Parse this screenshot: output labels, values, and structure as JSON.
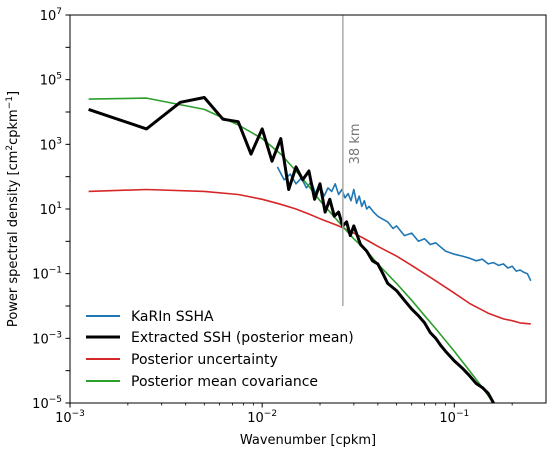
{
  "chart_data": {
    "type": "line",
    "xscale": "log",
    "yscale": "log",
    "xlim": [
      0.001,
      0.3
    ],
    "ylim": [
      1e-05,
      10000000
    ],
    "xlabel": "Wavenumber [cpkm]",
    "ylabel_main": "Power spectral density [cm",
    "ylabel_exp1": "2",
    "ylabel_mid": "cpkm",
    "ylabel_exp2": "−1",
    "ylabel_end": "]",
    "xticks": [
      {
        "value": 0.001,
        "base": "10",
        "exp": "−3"
      },
      {
        "value": 0.01,
        "base": "10",
        "exp": "−2"
      },
      {
        "value": 0.1,
        "base": "10",
        "exp": "−1"
      }
    ],
    "yticks": [
      {
        "value": 1e-05,
        "base": "10",
        "exp": "−5"
      },
      {
        "value": 0.001,
        "base": "10",
        "exp": "−3"
      },
      {
        "value": 0.1,
        "base": "10",
        "exp": "−1"
      },
      {
        "value": 10,
        "base": "10",
        "exp": "1"
      },
      {
        "value": 1000,
        "base": "10",
        "exp": "3"
      },
      {
        "value": 100000,
        "base": "10",
        "exp": "5"
      },
      {
        "value": 10000000,
        "base": "10",
        "exp": "7"
      }
    ],
    "annotation": {
      "x": 0.0263,
      "text": "38 km",
      "color": "#aaaaaa"
    },
    "legend_position": "lower-left",
    "series": [
      {
        "name": "KaRIn SSHA",
        "color": "#1f77b4",
        "x": [
          0.012,
          0.013,
          0.014,
          0.015,
          0.016,
          0.017,
          0.018,
          0.019,
          0.02,
          0.021,
          0.022,
          0.023,
          0.024,
          0.025,
          0.026,
          0.027,
          0.028,
          0.029,
          0.03,
          0.031,
          0.032,
          0.033,
          0.034,
          0.035,
          0.036,
          0.038,
          0.04,
          0.042,
          0.045,
          0.048,
          0.05,
          0.055,
          0.06,
          0.065,
          0.07,
          0.075,
          0.08,
          0.09,
          0.1,
          0.11,
          0.12,
          0.13,
          0.14,
          0.15,
          0.16,
          0.17,
          0.18,
          0.19,
          0.2,
          0.21,
          0.22,
          0.23,
          0.24,
          0.25
        ],
        "y": [
          200,
          80,
          120,
          60,
          90,
          45,
          70,
          30,
          55,
          25,
          45,
          35,
          60,
          28,
          40,
          22,
          30,
          18,
          40,
          15,
          25,
          12,
          18,
          10,
          12,
          8,
          6,
          5,
          4,
          2.5,
          3,
          1.5,
          1.8,
          1,
          1.2,
          0.8,
          0.9,
          0.5,
          0.4,
          0.35,
          0.3,
          0.25,
          0.28,
          0.2,
          0.22,
          0.18,
          0.2,
          0.15,
          0.17,
          0.12,
          0.13,
          0.11,
          0.1,
          0.06
        ]
      },
      {
        "name": "Extracted SSH (posterior mean)",
        "color": "#000000",
        "x": [
          0.00125,
          0.0025,
          0.00375,
          0.005,
          0.00625,
          0.0075,
          0.00875,
          0.01,
          0.01125,
          0.0125,
          0.01375,
          0.015,
          0.01625,
          0.0175,
          0.01875,
          0.02,
          0.02125,
          0.0225,
          0.02375,
          0.025,
          0.02625,
          0.0275,
          0.02875,
          0.03,
          0.0325,
          0.035,
          0.0375,
          0.04,
          0.0425,
          0.045,
          0.05,
          0.055,
          0.06,
          0.065,
          0.07,
          0.075,
          0.08,
          0.085,
          0.09,
          0.1,
          0.11,
          0.12,
          0.13,
          0.14,
          0.15,
          0.16
        ],
        "y": [
          12000,
          3000,
          20000,
          28000,
          6000,
          5000,
          500,
          3000,
          300,
          1500,
          40,
          200,
          80,
          150,
          20,
          60,
          8,
          20,
          6,
          8,
          3,
          4,
          1.5,
          3,
          0.8,
          0.5,
          0.25,
          0.2,
          0.1,
          0.05,
          0.03,
          0.015,
          0.008,
          0.005,
          0.003,
          0.0015,
          0.001,
          0.0006,
          0.0004,
          0.0002,
          0.00012,
          7e-05,
          4e-05,
          3e-05,
          2e-05,
          1e-05
        ]
      },
      {
        "name": "Posterior uncertainty",
        "color": "#d62728",
        "x": [
          0.00125,
          0.0025,
          0.005,
          0.0075,
          0.01,
          0.0125,
          0.015,
          0.0175,
          0.02,
          0.025,
          0.03,
          0.035,
          0.04,
          0.05,
          0.06,
          0.07,
          0.08,
          0.1,
          0.12,
          0.15,
          0.18,
          0.2,
          0.22,
          0.25
        ],
        "y": [
          35,
          40,
          35,
          28,
          20,
          14,
          10,
          7,
          5,
          3,
          1.8,
          1.1,
          0.7,
          0.35,
          0.18,
          0.1,
          0.06,
          0.025,
          0.012,
          0.006,
          0.004,
          0.0035,
          0.003,
          0.0028
        ]
      },
      {
        "name": "Posterior mean covariance",
        "color": "#2ca02c",
        "x": [
          0.00125,
          0.0025,
          0.005,
          0.0075,
          0.01,
          0.0125,
          0.015,
          0.0175,
          0.02,
          0.025,
          0.03,
          0.035,
          0.04,
          0.05,
          0.06,
          0.07,
          0.08,
          0.1,
          0.12,
          0.14,
          0.16
        ],
        "y": [
          25000,
          27000,
          12000,
          4000,
          1500,
          500,
          150,
          50,
          18,
          4,
          1.2,
          0.5,
          0.2,
          0.05,
          0.015,
          0.005,
          0.002,
          0.0004,
          0.0001,
          3e-05,
          1e-05
        ]
      }
    ]
  }
}
